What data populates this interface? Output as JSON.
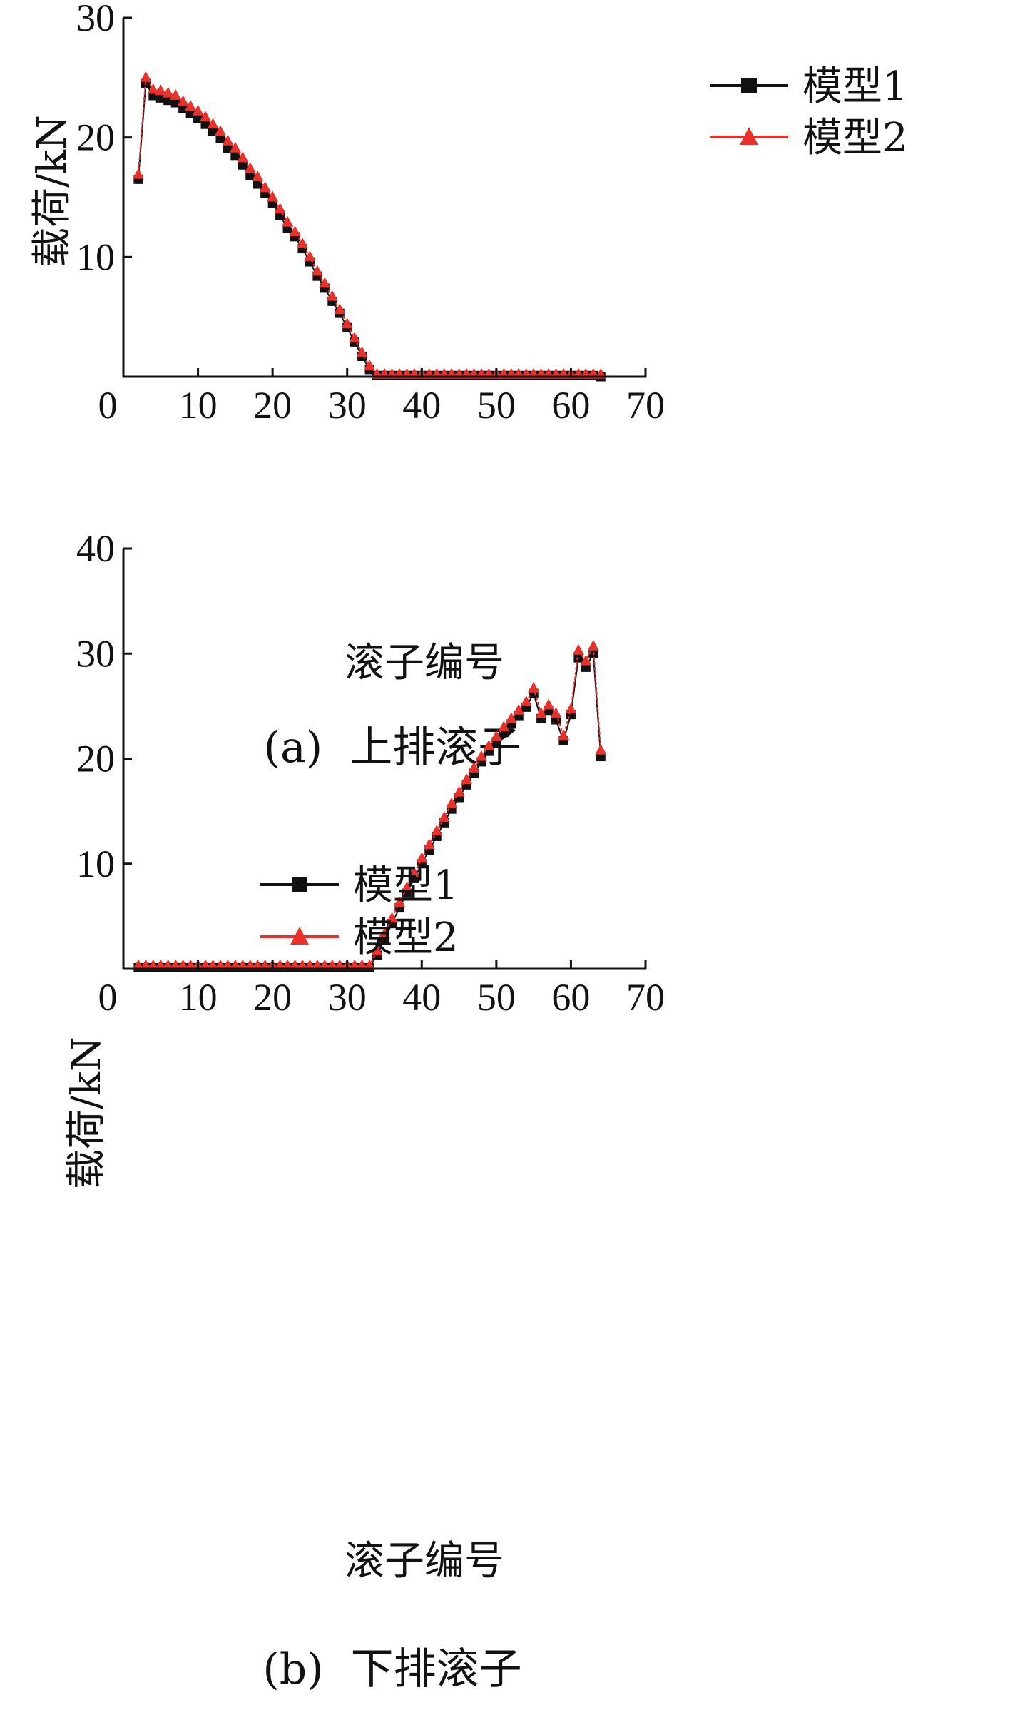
{
  "chart_data": [
    {
      "type": "line",
      "caption": "(a)  上排滚子",
      "xlabel": "滚子编号",
      "ylabel": "载荷/kN",
      "xlim": [
        0,
        70
      ],
      "ylim": [
        0,
        30
      ],
      "xticks": [
        "0",
        "10",
        "20",
        "30",
        "40",
        "50",
        "60",
        "70"
      ],
      "yticks": [
        "10",
        "20",
        "30"
      ],
      "legend_position": "top-right",
      "grid": false,
      "x": [
        2,
        3,
        4,
        5,
        6,
        7,
        8,
        9,
        10,
        11,
        12,
        13,
        14,
        15,
        16,
        17,
        18,
        19,
        20,
        21,
        22,
        23,
        24,
        25,
        26,
        27,
        28,
        29,
        30,
        31,
        32,
        33,
        34,
        35,
        36,
        37,
        38,
        39,
        40,
        41,
        42,
        43,
        44,
        45,
        46,
        47,
        48,
        49,
        50,
        51,
        52,
        53,
        54,
        55,
        56,
        57,
        58,
        59,
        60,
        61,
        62,
        63,
        64
      ],
      "series": [
        {
          "name": "模型1",
          "color": "#111111",
          "marker": "square",
          "values": [
            16.5,
            24.5,
            23.5,
            23.3,
            23.1,
            22.9,
            22.4,
            22.0,
            21.6,
            21.1,
            20.5,
            19.9,
            19.1,
            18.5,
            17.7,
            16.8,
            16.1,
            15.3,
            14.5,
            13.5,
            12.4,
            11.7,
            10.7,
            9.6,
            8.4,
            7.4,
            6.3,
            5.3,
            4.1,
            2.9,
            1.7,
            0.6,
            0.1,
            0.1,
            0.1,
            0.1,
            0.1,
            0.1,
            0.1,
            0.1,
            0.1,
            0.1,
            0.1,
            0.1,
            0.1,
            0.1,
            0.1,
            0.1,
            0.1,
            0.1,
            0.1,
            0.1,
            0.1,
            0.1,
            0.1,
            0.1,
            0.1,
            0.1,
            0.1,
            0.1,
            0.1,
            0.1,
            0.0
          ]
        },
        {
          "name": "模型2",
          "color": "#e8312a",
          "marker": "triangle",
          "values": [
            16.9,
            25.0,
            24.0,
            23.9,
            23.7,
            23.5,
            23.0,
            22.6,
            22.2,
            21.7,
            21.1,
            20.5,
            19.7,
            19.1,
            18.3,
            17.4,
            16.7,
            15.8,
            15.0,
            14.0,
            12.9,
            12.1,
            11.1,
            10.0,
            8.8,
            7.8,
            6.7,
            5.6,
            4.4,
            3.2,
            2.0,
            0.9,
            0.2,
            0.2,
            0.2,
            0.2,
            0.2,
            0.2,
            0.2,
            0.2,
            0.2,
            0.2,
            0.2,
            0.2,
            0.2,
            0.2,
            0.2,
            0.2,
            0.2,
            0.2,
            0.2,
            0.2,
            0.2,
            0.2,
            0.2,
            0.2,
            0.2,
            0.2,
            0.2,
            0.2,
            0.2,
            0.2,
            0.2
          ]
        }
      ]
    },
    {
      "type": "line",
      "caption": "(b)  下排滚子",
      "xlabel": "滚子编号",
      "ylabel": "载荷/kN",
      "xlim": [
        0,
        70
      ],
      "ylim": [
        0,
        40
      ],
      "xticks": [
        "0",
        "10",
        "20",
        "30",
        "40",
        "50",
        "60",
        "70"
      ],
      "yticks": [
        "10",
        "20",
        "30",
        "40"
      ],
      "legend_position": "top-left",
      "grid": false,
      "x": [
        2,
        3,
        4,
        5,
        6,
        7,
        8,
        9,
        10,
        11,
        12,
        13,
        14,
        15,
        16,
        17,
        18,
        19,
        20,
        21,
        22,
        23,
        24,
        25,
        26,
        27,
        28,
        29,
        30,
        31,
        32,
        33,
        34,
        35,
        36,
        37,
        38,
        39,
        40,
        41,
        42,
        43,
        44,
        45,
        46,
        47,
        48,
        49,
        50,
        51,
        52,
        53,
        54,
        55,
        56,
        57,
        58,
        59,
        60,
        61,
        62,
        63,
        64
      ],
      "series": [
        {
          "name": "模型1",
          "color": "#111111",
          "marker": "square",
          "values": [
            0.1,
            0.1,
            0.1,
            0.1,
            0.1,
            0.1,
            0.1,
            0.1,
            0.1,
            0.1,
            0.1,
            0.1,
            0.1,
            0.1,
            0.1,
            0.1,
            0.1,
            0.1,
            0.1,
            0.1,
            0.1,
            0.1,
            0.1,
            0.1,
            0.1,
            0.1,
            0.1,
            0.1,
            0.1,
            0.1,
            0.1,
            0.1,
            1.3,
            2.8,
            4.3,
            5.8,
            7.2,
            8.6,
            10.0,
            11.3,
            12.6,
            13.9,
            15.2,
            16.3,
            17.5,
            18.6,
            19.7,
            20.7,
            21.6,
            22.5,
            23.3,
            24.1,
            24.9,
            26.2,
            23.8,
            24.6,
            23.7,
            21.7,
            24.2,
            29.6,
            28.7,
            30.0,
            20.2
          ]
        },
        {
          "name": "模型2",
          "color": "#e8312a",
          "marker": "triangle",
          "values": [
            0.3,
            0.3,
            0.3,
            0.3,
            0.3,
            0.3,
            0.3,
            0.3,
            0.3,
            0.3,
            0.3,
            0.3,
            0.3,
            0.3,
            0.3,
            0.3,
            0.3,
            0.3,
            0.3,
            0.3,
            0.3,
            0.3,
            0.3,
            0.3,
            0.3,
            0.3,
            0.3,
            0.3,
            0.3,
            0.3,
            0.3,
            0.3,
            1.7,
            3.3,
            4.8,
            6.3,
            7.7,
            9.1,
            10.5,
            11.8,
            13.1,
            14.4,
            15.7,
            16.8,
            18.0,
            19.1,
            20.2,
            21.2,
            22.1,
            23.0,
            23.8,
            24.6,
            25.4,
            26.7,
            24.3,
            25.1,
            24.3,
            22.2,
            24.7,
            30.3,
            29.3,
            30.7,
            20.8
          ]
        }
      ]
    }
  ]
}
